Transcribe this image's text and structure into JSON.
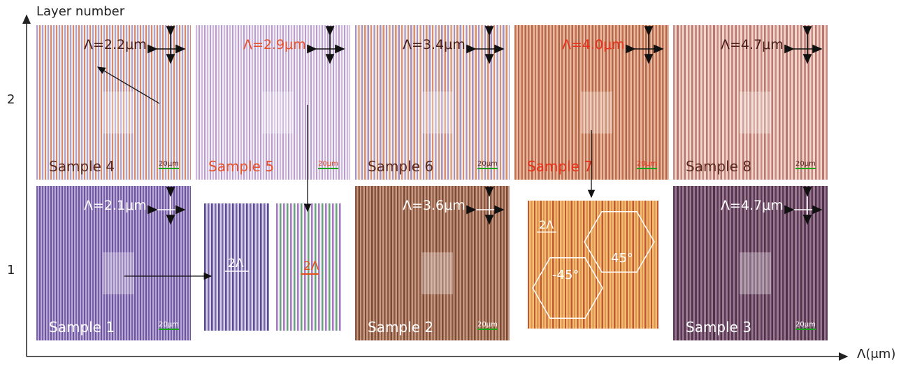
{
  "axes": {
    "y_label": "Layer number",
    "x_label": "Λ(μm)",
    "y_ticks": [
      "2",
      "1"
    ]
  },
  "panels": [
    {
      "lambda": "Λ=2.2μm",
      "sample": "Sample 4",
      "scale": "20μm"
    },
    {
      "lambda": "Λ=2.9μm",
      "sample": "Sample 5",
      "scale": "20μm"
    },
    {
      "lambda": "Λ=3.4μm",
      "sample": "Sample 6",
      "scale": "20μm"
    },
    {
      "lambda": "Λ=4.0μm",
      "sample": "Sample 7",
      "scale": "20μm"
    },
    {
      "lambda": "Λ=4.7μm",
      "sample": "Sample 8",
      "scale": "20μm"
    },
    {
      "lambda": "Λ=2.1μm",
      "sample": "Sample 1",
      "scale": "20μm"
    },
    {
      "lambda": "Λ=3.6μm",
      "sample": "Sample 2",
      "scale": "20μm"
    },
    {
      "lambda": "Λ=4.7μm",
      "sample": "Sample 3",
      "scale": "20μm"
    }
  ],
  "insets": [
    {
      "labels": [
        "2Λ"
      ]
    },
    {
      "labels": [
        "2Λ"
      ]
    },
    {
      "labels": [
        "2Λ",
        "-45°",
        "45°"
      ]
    }
  ]
}
